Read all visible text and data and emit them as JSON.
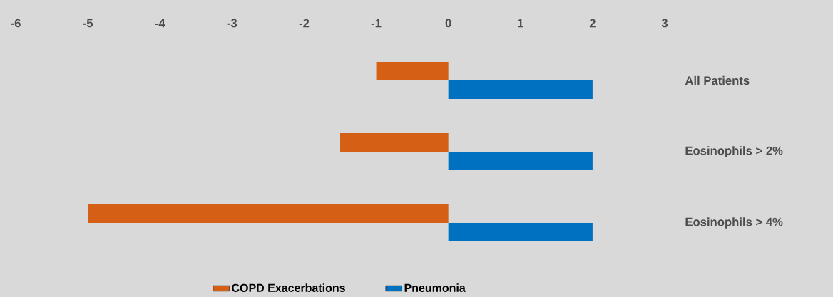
{
  "chart_data": {
    "type": "bar",
    "orientation": "horizontal",
    "categories": [
      "All Patients",
      "Eosinophils > 2%",
      "Eosinophils > 4%"
    ],
    "series": [
      {
        "name": "COPD Exacerbations",
        "color": "#d55f14",
        "values": [
          -1,
          -1.5,
          -5
        ]
      },
      {
        "name": "Pneumonia",
        "color": "#0070c0",
        "values": [
          2,
          2,
          2
        ]
      }
    ],
    "xlim": [
      -6,
      3
    ],
    "xticks": [
      -6,
      -5,
      -4,
      -3,
      -2,
      -1,
      0,
      1,
      2,
      3
    ],
    "legend": "bottom"
  }
}
